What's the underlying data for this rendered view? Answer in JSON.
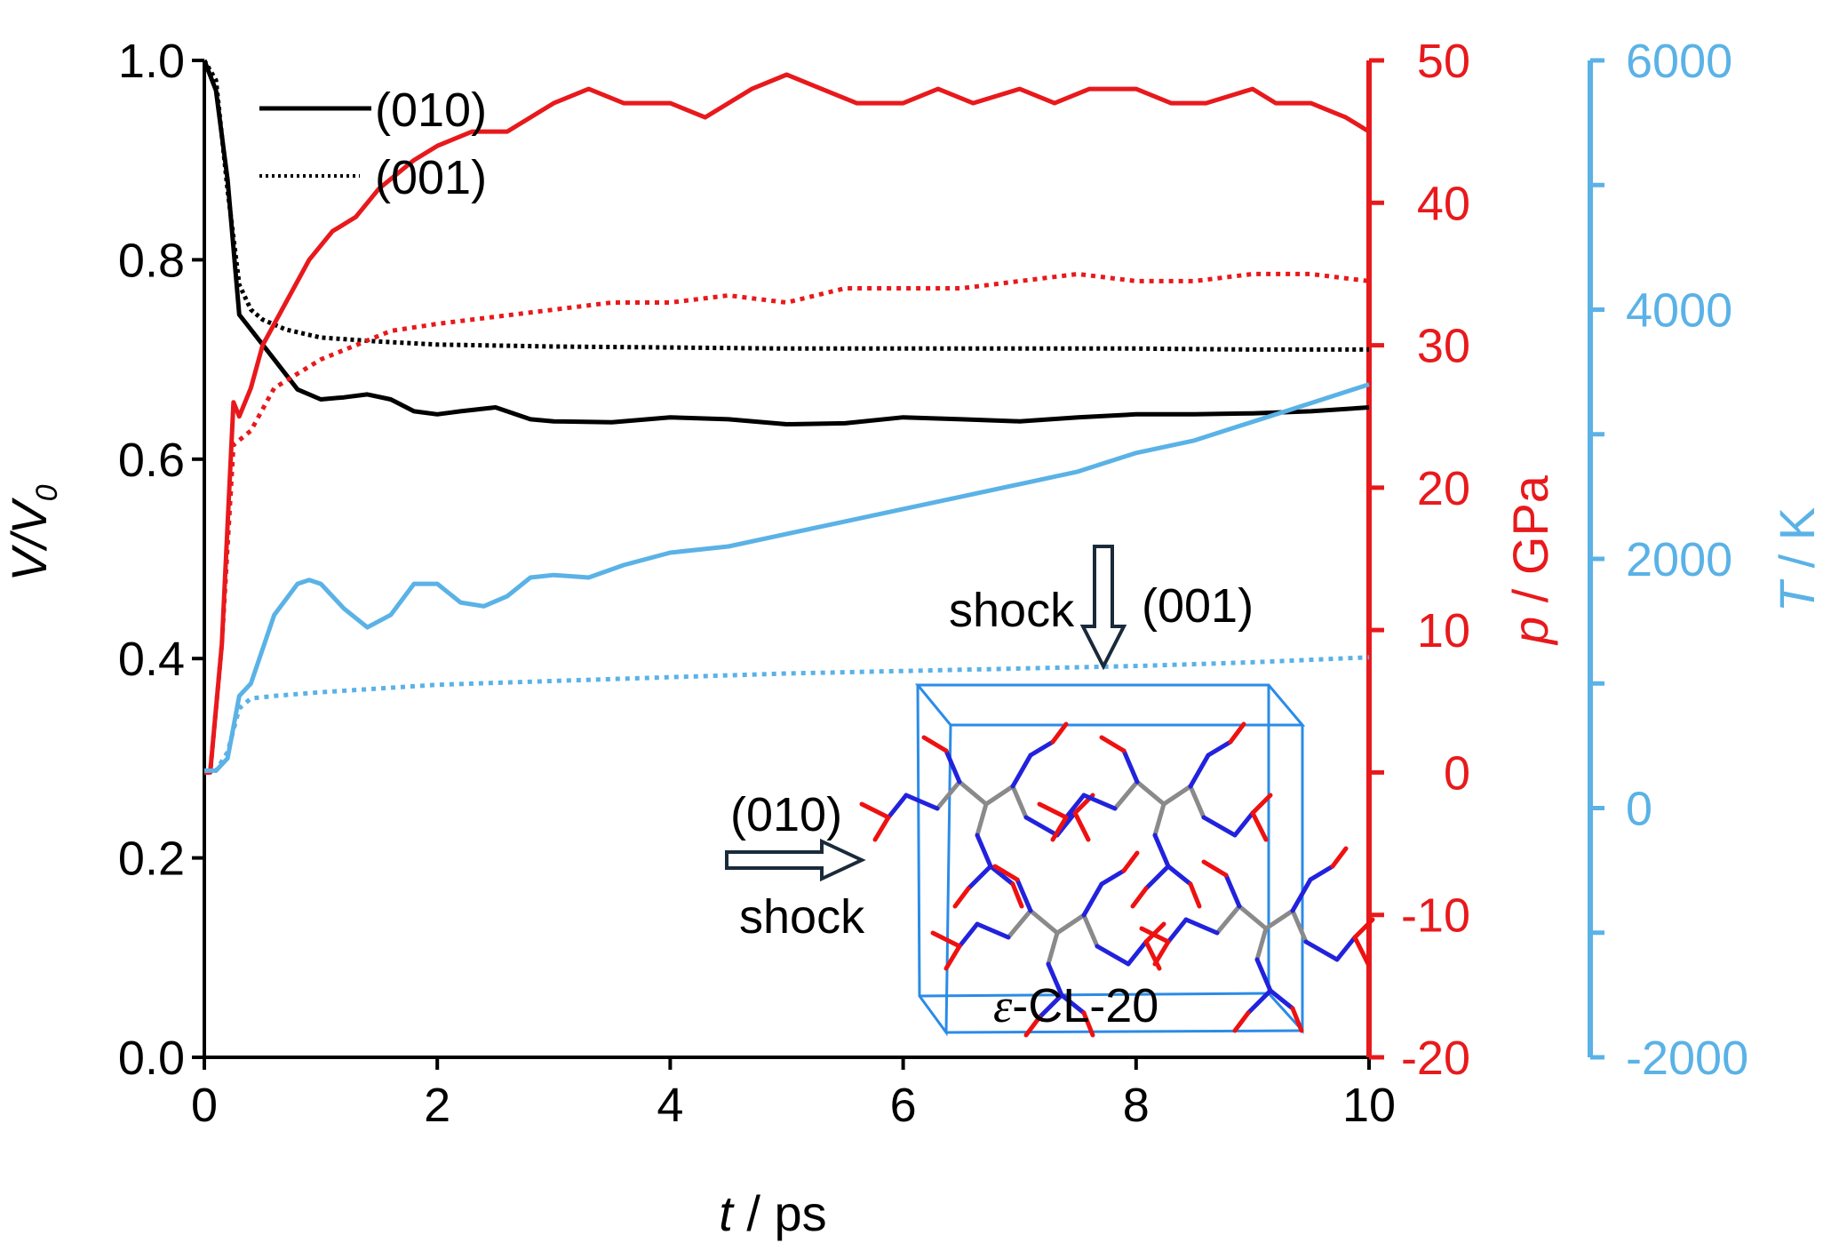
{
  "colors": {
    "volume": "#000000",
    "pressure": "#e8191c",
    "temperature": "#5ab2e6",
    "nitrogen": "#2222dd",
    "oxygen": "#ee1111",
    "carbon": "#8a8a8a",
    "cell": "#2b8be8"
  },
  "chart_data": {
    "type": "line",
    "x_axis": {
      "label_italic": "t",
      "label_rest": " / ps",
      "range": [
        0,
        10
      ],
      "ticks": [
        "0",
        "2",
        "4",
        "6",
        "8",
        "10"
      ]
    },
    "y_left": {
      "label_main": "V/V",
      "label_sub": "0",
      "range": [
        0,
        1
      ],
      "ticks": [
        "0.0",
        "0.2",
        "0.4",
        "0.6",
        "0.8",
        "1.0"
      ]
    },
    "y_right_pressure": {
      "label_italic": "p",
      "label_rest": " / GPa",
      "range": [
        -20,
        50
      ],
      "ticks": [
        "-20",
        "-10",
        "0",
        "10",
        "20",
        "30",
        "40",
        "50"
      ]
    },
    "y_right_temperature": {
      "label_italic": "T",
      "label_rest": " / K",
      "range": [
        -2000,
        6000
      ],
      "ticks": [
        "-2000",
        "0",
        "2000",
        "4000",
        "6000"
      ]
    },
    "legend": [
      {
        "label": "(010)",
        "style": "solid"
      },
      {
        "label": "(001)",
        "style": "dotted"
      }
    ],
    "series": [
      {
        "name": "(010)",
        "axis": "volume",
        "style": "solid",
        "x": [
          0,
          0.1,
          0.2,
          0.3,
          0.4,
          0.6,
          0.8,
          1.0,
          1.2,
          1.4,
          1.6,
          1.8,
          2.0,
          2.2,
          2.5,
          2.8,
          3.0,
          3.5,
          4.0,
          4.5,
          5.0,
          5.5,
          6.0,
          6.5,
          7.0,
          7.5,
          8.0,
          8.5,
          9.0,
          9.5,
          10.0
        ],
        "y": [
          1.0,
          0.97,
          0.88,
          0.745,
          0.73,
          0.7,
          0.67,
          0.66,
          0.662,
          0.665,
          0.66,
          0.648,
          0.645,
          0.648,
          0.652,
          0.64,
          0.638,
          0.637,
          0.642,
          0.64,
          0.635,
          0.636,
          0.642,
          0.64,
          0.638,
          0.642,
          0.645,
          0.645,
          0.646,
          0.648,
          0.652
        ]
      },
      {
        "name": "(001)",
        "axis": "volume",
        "style": "dotted",
        "x": [
          0,
          0.1,
          0.2,
          0.3,
          0.4,
          0.5,
          0.7,
          1.0,
          1.5,
          2.0,
          3.0,
          4.0,
          5.0,
          6.0,
          7.0,
          8.0,
          9.0,
          10.0
        ],
        "y": [
          1.0,
          0.98,
          0.87,
          0.775,
          0.75,
          0.74,
          0.73,
          0.722,
          0.718,
          0.715,
          0.713,
          0.712,
          0.711,
          0.711,
          0.711,
          0.711,
          0.71,
          0.71
        ]
      },
      {
        "name": "(010)",
        "axis": "pressure",
        "style": "solid",
        "x": [
          0,
          0.05,
          0.15,
          0.25,
          0.3,
          0.4,
          0.5,
          0.7,
          0.9,
          1.1,
          1.3,
          1.5,
          1.8,
          2.0,
          2.3,
          2.6,
          2.8,
          3.0,
          3.3,
          3.6,
          4.0,
          4.3,
          4.7,
          5.0,
          5.3,
          5.6,
          6.0,
          6.3,
          6.6,
          7.0,
          7.3,
          7.6,
          8.0,
          8.3,
          8.6,
          9.0,
          9.2,
          9.5,
          9.8,
          10.0
        ],
        "y": [
          0,
          0,
          9,
          26,
          25,
          27,
          30,
          33,
          36,
          38,
          39,
          41,
          43,
          44,
          45,
          45,
          46,
          47,
          48,
          47,
          47,
          46,
          48,
          49,
          48,
          47,
          47,
          48,
          47,
          48,
          47,
          48,
          48,
          47,
          47,
          48,
          47,
          47,
          46,
          45
        ]
      },
      {
        "name": "(001)",
        "axis": "pressure",
        "style": "dotted",
        "x": [
          0,
          0.05,
          0.15,
          0.25,
          0.4,
          0.6,
          0.8,
          1.0,
          1.3,
          1.6,
          2.0,
          2.5,
          3.0,
          3.5,
          4.0,
          4.5,
          5.0,
          5.5,
          6.0,
          6.5,
          7.0,
          7.5,
          8.0,
          8.5,
          9.0,
          9.5,
          10.0
        ],
        "y": [
          0,
          0,
          9,
          23,
          24,
          27,
          28,
          29,
          30,
          31,
          31.5,
          32,
          32.5,
          33,
          33,
          33.5,
          33,
          34,
          34,
          34,
          34.5,
          35,
          34.5,
          34.5,
          35,
          35,
          34.5
        ]
      },
      {
        "name": "(010)",
        "axis": "temperature",
        "style": "solid",
        "x": [
          0,
          0.1,
          0.2,
          0.3,
          0.4,
          0.6,
          0.8,
          0.9,
          1.0,
          1.2,
          1.4,
          1.6,
          1.8,
          2.0,
          2.2,
          2.4,
          2.6,
          2.8,
          3.0,
          3.3,
          3.6,
          4.0,
          4.5,
          5.0,
          5.5,
          6.0,
          6.5,
          7.0,
          7.5,
          8.0,
          8.5,
          9.0,
          9.5,
          10.0
        ],
        "y": [
          300,
          300,
          400,
          900,
          1000,
          1550,
          1800,
          1830,
          1800,
          1600,
          1450,
          1550,
          1800,
          1800,
          1650,
          1620,
          1700,
          1850,
          1870,
          1850,
          1950,
          2050,
          2100,
          2200,
          2300,
          2400,
          2500,
          2600,
          2700,
          2850,
          2950,
          3100,
          3250,
          3400
        ]
      },
      {
        "name": "(001)",
        "axis": "temperature",
        "style": "dotted",
        "x": [
          0,
          0.1,
          0.2,
          0.3,
          0.4,
          0.6,
          1.0,
          1.5,
          2.0,
          3.0,
          4.0,
          5.0,
          6.0,
          7.0,
          8.0,
          9.0,
          10.0
        ],
        "y": [
          300,
          300,
          450,
          800,
          880,
          900,
          930,
          960,
          990,
          1020,
          1050,
          1080,
          1100,
          1120,
          1140,
          1170,
          1210
        ]
      }
    ]
  },
  "inset": {
    "structure_label_prefix": "ε",
    "structure_label_rest": "-CL-20",
    "shock_top_word": "shock",
    "shock_top_dir": "(001)",
    "shock_left_dir": "(010)",
    "shock_left_word": "shock"
  }
}
